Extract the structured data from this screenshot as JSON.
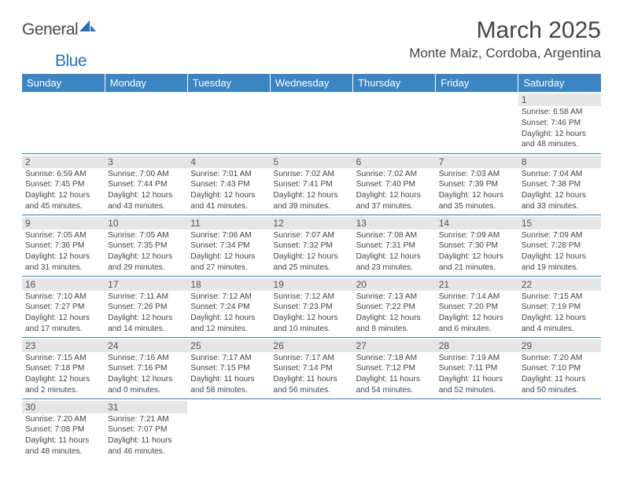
{
  "logo": {
    "text1": "General",
    "text2": "Blue"
  },
  "title": "March 2025",
  "location": "Monte Maiz, Cordoba, Argentina",
  "colors": {
    "header_bg": "#3b85c3",
    "header_text": "#ffffff",
    "daynum_bg": "#e6e6e6",
    "border": "#3b85c3",
    "logo_blue": "#2b6fb0"
  },
  "weekdays": [
    "Sunday",
    "Monday",
    "Tuesday",
    "Wednesday",
    "Thursday",
    "Friday",
    "Saturday"
  ],
  "days": {
    "1": {
      "sunrise": "6:58 AM",
      "sunset": "7:46 PM",
      "daylight": "12 hours and 48 minutes."
    },
    "2": {
      "sunrise": "6:59 AM",
      "sunset": "7:45 PM",
      "daylight": "12 hours and 45 minutes."
    },
    "3": {
      "sunrise": "7:00 AM",
      "sunset": "7:44 PM",
      "daylight": "12 hours and 43 minutes."
    },
    "4": {
      "sunrise": "7:01 AM",
      "sunset": "7:43 PM",
      "daylight": "12 hours and 41 minutes."
    },
    "5": {
      "sunrise": "7:02 AM",
      "sunset": "7:41 PM",
      "daylight": "12 hours and 39 minutes."
    },
    "6": {
      "sunrise": "7:02 AM",
      "sunset": "7:40 PM",
      "daylight": "12 hours and 37 minutes."
    },
    "7": {
      "sunrise": "7:03 AM",
      "sunset": "7:39 PM",
      "daylight": "12 hours and 35 minutes."
    },
    "8": {
      "sunrise": "7:04 AM",
      "sunset": "7:38 PM",
      "daylight": "12 hours and 33 minutes."
    },
    "9": {
      "sunrise": "7:05 AM",
      "sunset": "7:36 PM",
      "daylight": "12 hours and 31 minutes."
    },
    "10": {
      "sunrise": "7:05 AM",
      "sunset": "7:35 PM",
      "daylight": "12 hours and 29 minutes."
    },
    "11": {
      "sunrise": "7:06 AM",
      "sunset": "7:34 PM",
      "daylight": "12 hours and 27 minutes."
    },
    "12": {
      "sunrise": "7:07 AM",
      "sunset": "7:32 PM",
      "daylight": "12 hours and 25 minutes."
    },
    "13": {
      "sunrise": "7:08 AM",
      "sunset": "7:31 PM",
      "daylight": "12 hours and 23 minutes."
    },
    "14": {
      "sunrise": "7:09 AM",
      "sunset": "7:30 PM",
      "daylight": "12 hours and 21 minutes."
    },
    "15": {
      "sunrise": "7:09 AM",
      "sunset": "7:28 PM",
      "daylight": "12 hours and 19 minutes."
    },
    "16": {
      "sunrise": "7:10 AM",
      "sunset": "7:27 PM",
      "daylight": "12 hours and 17 minutes."
    },
    "17": {
      "sunrise": "7:11 AM",
      "sunset": "7:26 PM",
      "daylight": "12 hours and 14 minutes."
    },
    "18": {
      "sunrise": "7:12 AM",
      "sunset": "7:24 PM",
      "daylight": "12 hours and 12 minutes."
    },
    "19": {
      "sunrise": "7:12 AM",
      "sunset": "7:23 PM",
      "daylight": "12 hours and 10 minutes."
    },
    "20": {
      "sunrise": "7:13 AM",
      "sunset": "7:22 PM",
      "daylight": "12 hours and 8 minutes."
    },
    "21": {
      "sunrise": "7:14 AM",
      "sunset": "7:20 PM",
      "daylight": "12 hours and 6 minutes."
    },
    "22": {
      "sunrise": "7:15 AM",
      "sunset": "7:19 PM",
      "daylight": "12 hours and 4 minutes."
    },
    "23": {
      "sunrise": "7:15 AM",
      "sunset": "7:18 PM",
      "daylight": "12 hours and 2 minutes."
    },
    "24": {
      "sunrise": "7:16 AM",
      "sunset": "7:16 PM",
      "daylight": "12 hours and 0 minutes."
    },
    "25": {
      "sunrise": "7:17 AM",
      "sunset": "7:15 PM",
      "daylight": "11 hours and 58 minutes."
    },
    "26": {
      "sunrise": "7:17 AM",
      "sunset": "7:14 PM",
      "daylight": "11 hours and 56 minutes."
    },
    "27": {
      "sunrise": "7:18 AM",
      "sunset": "7:12 PM",
      "daylight": "11 hours and 54 minutes."
    },
    "28": {
      "sunrise": "7:19 AM",
      "sunset": "7:11 PM",
      "daylight": "11 hours and 52 minutes."
    },
    "29": {
      "sunrise": "7:20 AM",
      "sunset": "7:10 PM",
      "daylight": "11 hours and 50 minutes."
    },
    "30": {
      "sunrise": "7:20 AM",
      "sunset": "7:08 PM",
      "daylight": "11 hours and 48 minutes."
    },
    "31": {
      "sunrise": "7:21 AM",
      "sunset": "7:07 PM",
      "daylight": "11 hours and 46 minutes."
    }
  },
  "labels": {
    "sunrise": "Sunrise: ",
    "sunset": "Sunset: ",
    "daylight": "Daylight: "
  },
  "grid": [
    [
      null,
      null,
      null,
      null,
      null,
      null,
      "1"
    ],
    [
      "2",
      "3",
      "4",
      "5",
      "6",
      "7",
      "8"
    ],
    [
      "9",
      "10",
      "11",
      "12",
      "13",
      "14",
      "15"
    ],
    [
      "16",
      "17",
      "18",
      "19",
      "20",
      "21",
      "22"
    ],
    [
      "23",
      "24",
      "25",
      "26",
      "27",
      "28",
      "29"
    ],
    [
      "30",
      "31",
      null,
      null,
      null,
      null,
      null
    ]
  ]
}
